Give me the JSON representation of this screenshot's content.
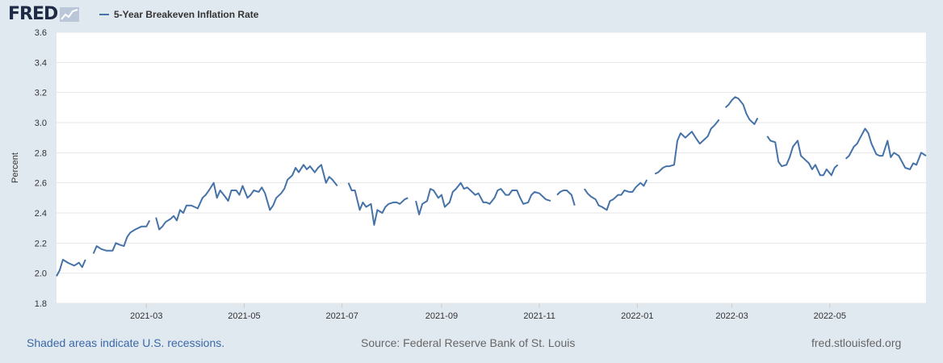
{
  "header": {
    "logo_text": "FRED",
    "logo_icon": "line-chart-icon",
    "legend_label": "5-Year Breakeven Inflation Rate"
  },
  "footer": {
    "recession_note": "Shaded areas indicate U.S. recessions.",
    "source": "Source: Federal Reserve Bank of St. Louis",
    "url": "fred.stlouisfed.org"
  },
  "colors": {
    "series": "#4572a7",
    "background": "#e1e9f0",
    "plot_background": "#ffffff",
    "grid": "#e6e6e6",
    "link": "#3a68a8"
  },
  "chart_data": {
    "type": "line",
    "title": "",
    "xlabel": "",
    "ylabel": "Percent",
    "ylim": [
      1.8,
      3.6
    ],
    "yticks": [
      1.8,
      2.0,
      2.2,
      2.4,
      2.6,
      2.8,
      3.0,
      3.2,
      3.4,
      3.6
    ],
    "xlim": [
      "2021-01-04",
      "2022-06-30"
    ],
    "xticks": [
      {
        "date": "2021-03-01",
        "label": "2021-03"
      },
      {
        "date": "2021-05-01",
        "label": "2021-05"
      },
      {
        "date": "2021-07-01",
        "label": "2021-07"
      },
      {
        "date": "2021-09-01",
        "label": "2021-09"
      },
      {
        "date": "2021-11-01",
        "label": "2021-11"
      },
      {
        "date": "2022-01-01",
        "label": "2022-01"
      },
      {
        "date": "2022-03-01",
        "label": "2022-03"
      },
      {
        "date": "2022-05-01",
        "label": "2022-05"
      }
    ],
    "grid": true,
    "legend": "top-left",
    "series": [
      {
        "name": "5-Year Breakeven Inflation Rate",
        "segments": [
          [
            [
              "2021-01-04",
              1.98
            ],
            [
              "2021-01-06",
              2.02
            ],
            [
              "2021-01-08",
              2.09
            ],
            [
              "2021-01-11",
              2.07
            ],
            [
              "2021-01-13",
              2.06
            ],
            [
              "2021-01-15",
              2.05
            ],
            [
              "2021-01-18",
              2.07
            ],
            [
              "2021-01-20",
              2.04
            ],
            [
              "2021-01-22",
              2.09
            ]
          ],
          [
            [
              "2021-01-27",
              2.13
            ],
            [
              "2021-01-29",
              2.18
            ],
            [
              "2021-02-01",
              2.16
            ],
            [
              "2021-02-04",
              2.15
            ],
            [
              "2021-02-08",
              2.15
            ],
            [
              "2021-02-10",
              2.2
            ],
            [
              "2021-02-12",
              2.19
            ],
            [
              "2021-02-15",
              2.18
            ],
            [
              "2021-02-17",
              2.24
            ],
            [
              "2021-02-19",
              2.27
            ],
            [
              "2021-02-22",
              2.29
            ],
            [
              "2021-02-24",
              2.3
            ],
            [
              "2021-02-26",
              2.31
            ],
            [
              "2021-03-01",
              2.31
            ],
            [
              "2021-03-03",
              2.35
            ]
          ],
          [
            [
              "2021-03-07",
              2.37
            ],
            [
              "2021-03-09",
              2.29
            ],
            [
              "2021-03-11",
              2.31
            ],
            [
              "2021-03-13",
              2.34
            ],
            [
              "2021-03-16",
              2.36
            ],
            [
              "2021-03-18",
              2.38
            ],
            [
              "2021-03-20",
              2.35
            ],
            [
              "2021-03-22",
              2.42
            ],
            [
              "2021-03-24",
              2.4
            ],
            [
              "2021-03-26",
              2.45
            ],
            [
              "2021-03-29",
              2.45
            ],
            [
              "2021-03-31",
              2.44
            ],
            [
              "2021-04-02",
              2.43
            ],
            [
              "2021-04-05",
              2.5
            ],
            [
              "2021-04-07",
              2.52
            ],
            [
              "2021-04-09",
              2.55
            ],
            [
              "2021-04-12",
              2.6
            ],
            [
              "2021-04-14",
              2.5
            ],
            [
              "2021-04-16",
              2.55
            ],
            [
              "2021-04-19",
              2.51
            ],
            [
              "2021-04-21",
              2.48
            ],
            [
              "2021-04-23",
              2.55
            ],
            [
              "2021-04-26",
              2.55
            ],
            [
              "2021-04-28",
              2.52
            ],
            [
              "2021-04-30",
              2.58
            ],
            [
              "2021-05-03",
              2.5
            ],
            [
              "2021-05-05",
              2.52
            ],
            [
              "2021-05-07",
              2.55
            ],
            [
              "2021-05-10",
              2.54
            ],
            [
              "2021-05-12",
              2.57
            ],
            [
              "2021-05-14",
              2.53
            ],
            [
              "2021-05-17",
              2.42
            ],
            [
              "2021-05-19",
              2.45
            ],
            [
              "2021-05-21",
              2.5
            ],
            [
              "2021-05-24",
              2.53
            ],
            [
              "2021-05-26",
              2.56
            ],
            [
              "2021-05-28",
              2.62
            ],
            [
              "2021-05-31",
              2.65
            ],
            [
              "2021-06-02",
              2.7
            ],
            [
              "2021-06-04",
              2.67
            ],
            [
              "2021-06-07",
              2.72
            ],
            [
              "2021-06-09",
              2.69
            ],
            [
              "2021-06-11",
              2.71
            ],
            [
              "2021-06-14",
              2.67
            ],
            [
              "2021-06-16",
              2.7
            ],
            [
              "2021-06-18",
              2.72
            ],
            [
              "2021-06-21",
              2.6
            ],
            [
              "2021-06-23",
              2.64
            ],
            [
              "2021-06-25",
              2.62
            ],
            [
              "2021-06-28",
              2.58
            ]
          ],
          [
            [
              "2021-07-05",
              2.6
            ],
            [
              "2021-07-07",
              2.55
            ],
            [
              "2021-07-09",
              2.55
            ],
            [
              "2021-07-12",
              2.42
            ],
            [
              "2021-07-14",
              2.47
            ],
            [
              "2021-07-16",
              2.44
            ],
            [
              "2021-07-19",
              2.46
            ],
            [
              "2021-07-21",
              2.32
            ],
            [
              "2021-07-23",
              2.42
            ],
            [
              "2021-07-26",
              2.4
            ],
            [
              "2021-07-28",
              2.44
            ],
            [
              "2021-07-30",
              2.46
            ],
            [
              "2021-08-02",
              2.47
            ],
            [
              "2021-08-04",
              2.47
            ],
            [
              "2021-08-06",
              2.46
            ],
            [
              "2021-08-09",
              2.49
            ],
            [
              "2021-08-11",
              2.5
            ]
          ],
          [
            [
              "2021-08-16",
              2.48
            ],
            [
              "2021-08-18",
              2.39
            ],
            [
              "2021-08-20",
              2.46
            ],
            [
              "2021-08-23",
              2.48
            ],
            [
              "2021-08-25",
              2.56
            ],
            [
              "2021-08-27",
              2.55
            ],
            [
              "2021-08-30",
              2.5
            ],
            [
              "2021-09-01",
              2.52
            ],
            [
              "2021-09-03",
              2.44
            ],
            [
              "2021-09-06",
              2.47
            ],
            [
              "2021-09-08",
              2.54
            ],
            [
              "2021-09-10",
              2.56
            ],
            [
              "2021-09-13",
              2.6
            ],
            [
              "2021-09-15",
              2.56
            ],
            [
              "2021-09-17",
              2.57
            ],
            [
              "2021-09-20",
              2.54
            ],
            [
              "2021-09-22",
              2.52
            ],
            [
              "2021-09-24",
              2.53
            ],
            [
              "2021-09-27",
              2.47
            ],
            [
              "2021-09-29",
              2.47
            ],
            [
              "2021-10-01",
              2.46
            ],
            [
              "2021-10-04",
              2.5
            ],
            [
              "2021-10-06",
              2.55
            ],
            [
              "2021-10-08",
              2.56
            ],
            [
              "2021-10-11",
              2.52
            ],
            [
              "2021-10-13",
              2.52
            ],
            [
              "2021-10-15",
              2.55
            ],
            [
              "2021-10-18",
              2.55
            ],
            [
              "2021-10-20",
              2.5
            ],
            [
              "2021-10-22",
              2.46
            ],
            [
              "2021-10-25",
              2.47
            ],
            [
              "2021-10-27",
              2.52
            ],
            [
              "2021-10-29",
              2.54
            ],
            [
              "2021-11-01",
              2.53
            ],
            [
              "2021-11-03",
              2.51
            ],
            [
              "2021-11-05",
              2.49
            ],
            [
              "2021-11-08",
              2.48
            ]
          ],
          [
            [
              "2021-11-12",
              2.52
            ],
            [
              "2021-11-14",
              2.54
            ],
            [
              "2021-11-16",
              2.55
            ],
            [
              "2021-11-18",
              2.55
            ],
            [
              "2021-11-21",
              2.52
            ],
            [
              "2021-11-23",
              2.45
            ]
          ],
          [
            [
              "2021-11-29",
              2.56
            ],
            [
              "2021-12-01",
              2.53
            ],
            [
              "2021-12-03",
              2.51
            ],
            [
              "2021-12-06",
              2.49
            ],
            [
              "2021-12-08",
              2.45
            ],
            [
              "2021-12-10",
              2.44
            ],
            [
              "2021-12-13",
              2.42
            ],
            [
              "2021-12-15",
              2.48
            ],
            [
              "2021-12-17",
              2.49
            ],
            [
              "2021-12-20",
              2.52
            ],
            [
              "2021-12-22",
              2.52
            ],
            [
              "2021-12-24",
              2.55
            ],
            [
              "2021-12-27",
              2.54
            ],
            [
              "2021-12-29",
              2.54
            ],
            [
              "2021-12-31",
              2.57
            ],
            [
              "2022-01-03",
              2.6
            ],
            [
              "2022-01-05",
              2.58
            ],
            [
              "2022-01-07",
              2.62
            ]
          ],
          [
            [
              "2022-01-12",
              2.66
            ],
            [
              "2022-01-14",
              2.67
            ],
            [
              "2022-01-17",
              2.7
            ],
            [
              "2022-01-19",
              2.71
            ],
            [
              "2022-01-21",
              2.71
            ],
            [
              "2022-01-24",
              2.72
            ],
            [
              "2022-01-26",
              2.88
            ],
            [
              "2022-01-28",
              2.93
            ],
            [
              "2022-01-31",
              2.9
            ],
            [
              "2022-02-02",
              2.92
            ],
            [
              "2022-02-04",
              2.94
            ],
            [
              "2022-02-07",
              2.89
            ],
            [
              "2022-02-09",
              2.86
            ],
            [
              "2022-02-11",
              2.88
            ],
            [
              "2022-02-14",
              2.91
            ],
            [
              "2022-02-16",
              2.96
            ],
            [
              "2022-02-18",
              2.98
            ],
            [
              "2022-02-21",
              3.02
            ]
          ],
          [
            [
              "2022-02-25",
              3.1
            ],
            [
              "2022-02-27",
              3.12
            ],
            [
              "2022-03-01",
              3.15
            ],
            [
              "2022-03-03",
              3.17
            ],
            [
              "2022-03-05",
              3.16
            ],
            [
              "2022-03-08",
              3.12
            ],
            [
              "2022-03-10",
              3.06
            ],
            [
              "2022-03-12",
              3.02
            ],
            [
              "2022-03-15",
              2.99
            ],
            [
              "2022-03-17",
              3.03
            ]
          ],
          [
            [
              "2022-03-23",
              2.91
            ],
            [
              "2022-03-25",
              2.88
            ],
            [
              "2022-03-28",
              2.87
            ],
            [
              "2022-03-30",
              2.74
            ],
            [
              "2022-04-01",
              2.71
            ],
            [
              "2022-04-04",
              2.72
            ],
            [
              "2022-04-06",
              2.77
            ],
            [
              "2022-04-08",
              2.84
            ],
            [
              "2022-04-11",
              2.88
            ],
            [
              "2022-04-13",
              2.78
            ],
            [
              "2022-04-15",
              2.76
            ],
            [
              "2022-04-18",
              2.73
            ],
            [
              "2022-04-20",
              2.69
            ],
            [
              "2022-04-22",
              2.72
            ],
            [
              "2022-04-25",
              2.65
            ],
            [
              "2022-04-27",
              2.65
            ],
            [
              "2022-04-29",
              2.69
            ],
            [
              "2022-05-02",
              2.65
            ],
            [
              "2022-05-04",
              2.7
            ],
            [
              "2022-05-06",
              2.72
            ]
          ],
          [
            [
              "2022-05-11",
              2.76
            ],
            [
              "2022-05-13",
              2.78
            ],
            [
              "2022-05-16",
              2.84
            ],
            [
              "2022-05-18",
              2.86
            ],
            [
              "2022-05-20",
              2.9
            ],
            [
              "2022-05-23",
              2.96
            ],
            [
              "2022-05-25",
              2.93
            ],
            [
              "2022-05-27",
              2.86
            ],
            [
              "2022-05-30",
              2.79
            ],
            [
              "2022-06-01",
              2.78
            ],
            [
              "2022-06-03",
              2.78
            ],
            [
              "2022-06-06",
              2.88
            ],
            [
              "2022-06-08",
              2.77
            ],
            [
              "2022-06-10",
              2.8
            ],
            [
              "2022-06-13",
              2.78
            ],
            [
              "2022-06-15",
              2.74
            ],
            [
              "2022-06-17",
              2.7
            ],
            [
              "2022-06-20",
              2.69
            ],
            [
              "2022-06-22",
              2.73
            ],
            [
              "2022-06-24",
              2.72
            ],
            [
              "2022-06-27",
              2.8
            ],
            [
              "2022-06-30",
              2.78
            ]
          ]
        ]
      }
    ]
  }
}
